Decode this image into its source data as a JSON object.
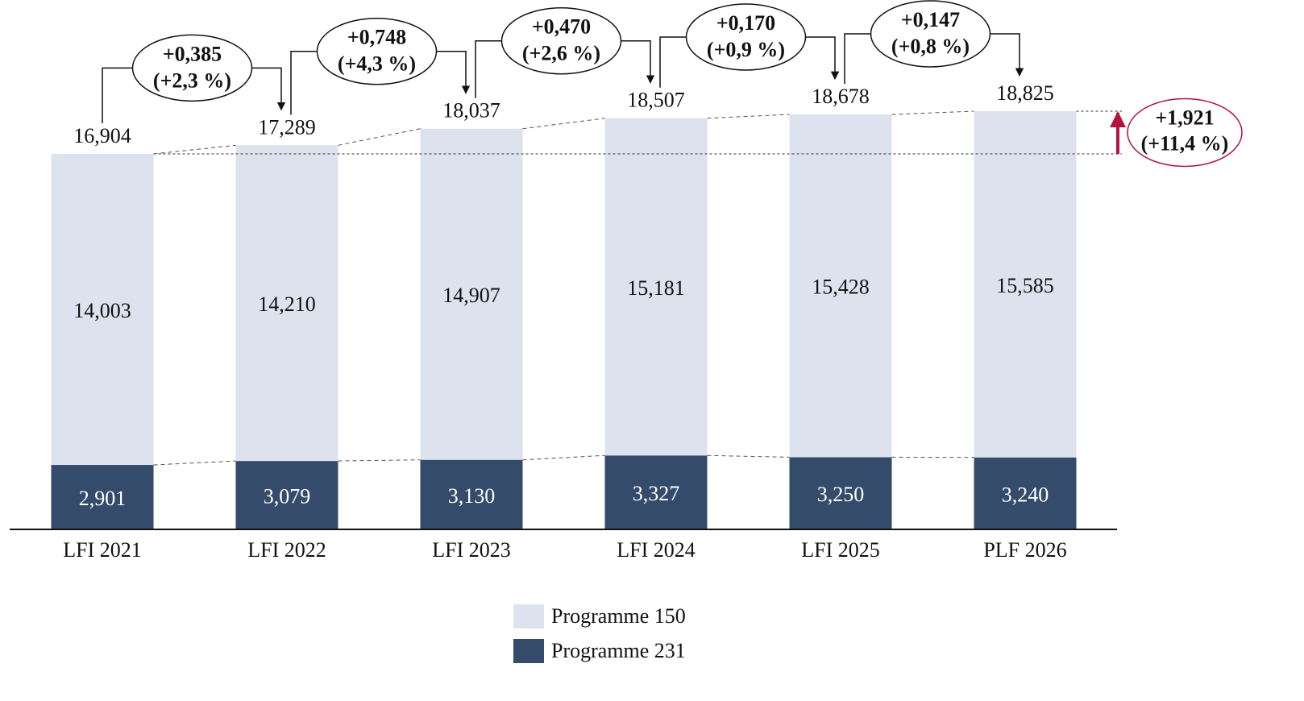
{
  "chart_data": {
    "type": "stacked_bar",
    "categories": [
      "LFI 2021",
      "LFI 2022",
      "LFI 2023",
      "LFI 2024",
      "LFI 2025",
      "PLF 2026"
    ],
    "series": [
      {
        "name": "Programme 231",
        "color": "#354b6b",
        "values": [
          2.901,
          3.079,
          3.13,
          3.327,
          3.25,
          3.24
        ],
        "value_labels": [
          "2,901",
          "3,079",
          "3,130",
          "3,327",
          "3,250",
          "3,240"
        ]
      },
      {
        "name": "Programme 150",
        "color": "#dde3ee",
        "values": [
          14.003,
          14.21,
          14.907,
          15.181,
          15.428,
          15.585
        ],
        "value_labels": [
          "14,003",
          "14,210",
          "14,907",
          "15,181",
          "15,428",
          "15,585"
        ]
      }
    ],
    "totals": {
      "values": [
        16.904,
        17.289,
        18.037,
        18.507,
        18.678,
        18.825
      ],
      "value_labels": [
        "16,904",
        "17,289",
        "18,037",
        "18,507",
        "18,678",
        "18,825"
      ]
    },
    "changes": [
      {
        "value": 0.385,
        "label": "+0,385",
        "pct": 2.3,
        "pct_label": "(+2,3 %)"
      },
      {
        "value": 0.748,
        "label": "+0,748",
        "pct": 4.3,
        "pct_label": "(+4,3 %)"
      },
      {
        "value": 0.47,
        "label": "+0,470",
        "pct": 2.6,
        "pct_label": "(+2,6 %)"
      },
      {
        "value": 0.17,
        "label": "+0,170",
        "pct": 0.9,
        "pct_label": "(+0,9 %)"
      },
      {
        "value": 0.147,
        "label": "+0,147",
        "pct": 0.8,
        "pct_label": "(+0,8 %)"
      }
    ],
    "overall_change": {
      "value": 1.921,
      "label": "+1,921",
      "pct": 11.4,
      "pct_label": "(+11,4 %)",
      "color": "#b5123e"
    }
  }
}
